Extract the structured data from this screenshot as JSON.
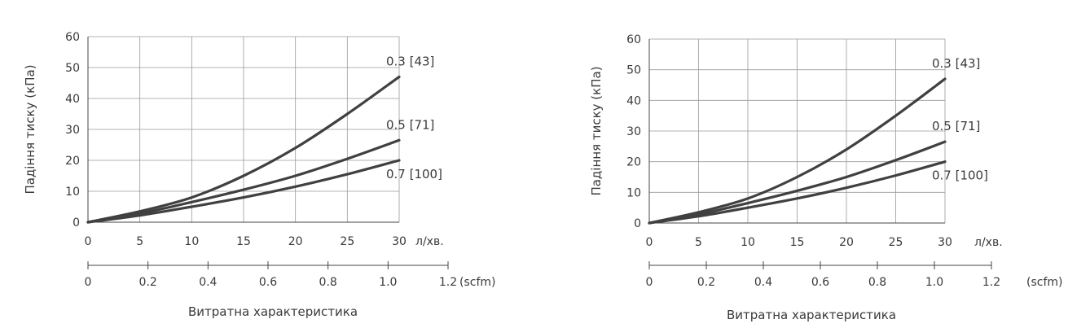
{
  "chart_data": [
    {
      "type": "line",
      "title": "",
      "xlabel": "Витратна характеристика",
      "ylabel": "Падіння тиску (кПа)",
      "x_unit": "л/хв.",
      "secondary_x_unit": "(scfm)",
      "xlim": [
        0,
        30
      ],
      "ylim": [
        0,
        60
      ],
      "x_ticks": [
        "0",
        "5",
        "10",
        "15",
        "20",
        "25",
        "30"
      ],
      "y_ticks": [
        "0",
        "10",
        "20",
        "30",
        "40",
        "50",
        "60"
      ],
      "secondary_x_ticks": [
        "0",
        "0.2",
        "0.4",
        "0.6",
        "0.8",
        "1.0",
        "1.2"
      ],
      "grid": true,
      "series": [
        {
          "name": "0.3 [43]",
          "x": [
            0,
            5,
            10,
            15,
            20,
            25,
            30
          ],
          "y": [
            0,
            3.5,
            8,
            15,
            24,
            35,
            47
          ]
        },
        {
          "name": "0.5 [71]",
          "x": [
            0,
            5,
            10,
            15,
            20,
            25,
            30
          ],
          "y": [
            0,
            2.8,
            6.5,
            10.5,
            15,
            20.5,
            26.5
          ]
        },
        {
          "name": "0.7 [100]",
          "x": [
            0,
            5,
            10,
            15,
            20,
            25,
            30
          ],
          "y": [
            0,
            2.2,
            5,
            8,
            11.5,
            15.5,
            20
          ]
        }
      ]
    },
    {
      "type": "line",
      "title": "",
      "xlabel": "Витратна характеристика",
      "ylabel": "Падіння тиску (кПа)",
      "x_unit": "л/хв.",
      "secondary_x_unit": "(scfm)",
      "xlim": [
        0,
        30
      ],
      "ylim": [
        0,
        60
      ],
      "x_ticks": [
        "0",
        "5",
        "10",
        "15",
        "20",
        "25",
        "30"
      ],
      "y_ticks": [
        "0",
        "10",
        "20",
        "30",
        "40",
        "50",
        "60"
      ],
      "secondary_x_ticks": [
        "0",
        "0.2",
        "0.4",
        "0.6",
        "0.8",
        "1.0",
        "1.2"
      ],
      "grid": true,
      "series": [
        {
          "name": "0.3 [43]",
          "x": [
            0,
            5,
            10,
            15,
            20,
            25,
            30
          ],
          "y": [
            0,
            3.5,
            8,
            15,
            24,
            35,
            47
          ]
        },
        {
          "name": "0.5 [71]",
          "x": [
            0,
            5,
            10,
            15,
            20,
            25,
            30
          ],
          "y": [
            0,
            2.8,
            6.5,
            10.5,
            15,
            20.5,
            26.5
          ]
        },
        {
          "name": "0.7 [100]",
          "x": [
            0,
            5,
            10,
            15,
            20,
            25,
            30
          ],
          "y": [
            0,
            2.2,
            5,
            8,
            11.5,
            15.5,
            20
          ]
        }
      ]
    }
  ]
}
